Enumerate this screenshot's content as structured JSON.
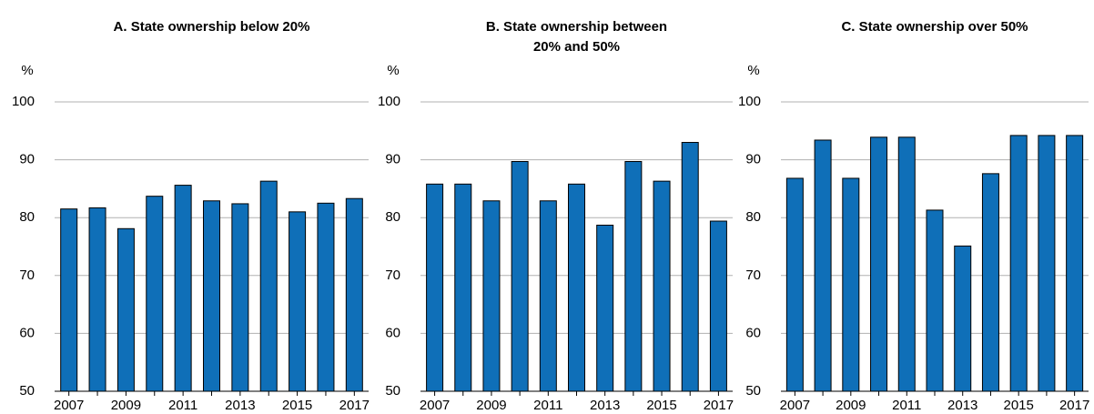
{
  "chart_data": [
    {
      "type": "bar",
      "title": [
        "A. State ownership below 20%"
      ],
      "ylabel": "%",
      "categories": [
        "2007",
        null,
        "2009",
        null,
        "2011",
        null,
        "2013",
        null,
        "2015",
        null,
        "2017"
      ],
      "values": [
        81.5,
        81.7,
        78.1,
        83.7,
        85.6,
        82.9,
        82.4,
        86.3,
        81.0,
        82.5,
        83.3
      ],
      "color": "#0f6fb8",
      "ylim": [
        50,
        100
      ],
      "yticks": [
        50,
        60,
        70,
        80,
        90,
        100
      ],
      "grid": true
    },
    {
      "type": "bar",
      "title": [
        "B. State ownership between",
        "20% and 50%"
      ],
      "ylabel": "%",
      "categories": [
        "2007",
        null,
        "2009",
        null,
        "2011",
        null,
        "2013",
        null,
        "2015",
        null,
        "2017"
      ],
      "values": [
        85.8,
        85.8,
        82.9,
        89.7,
        82.9,
        85.8,
        78.7,
        89.7,
        86.3,
        93.0,
        79.4
      ],
      "color": "#0f6fb8",
      "ylim": [
        50,
        100
      ],
      "yticks": [
        50,
        60,
        70,
        80,
        90,
        100
      ],
      "grid": true
    },
    {
      "type": "bar",
      "title": [
        "C. State ownership over 50%"
      ],
      "ylabel": "%",
      "categories": [
        "2007",
        null,
        "2009",
        null,
        "2011",
        null,
        "2013",
        null,
        "2015",
        null,
        "2017"
      ],
      "values": [
        86.8,
        93.4,
        86.8,
        93.9,
        93.9,
        81.3,
        75.1,
        87.6,
        94.2,
        94.2,
        94.2
      ],
      "color": "#0f6fb8",
      "ylim": [
        50,
        100
      ],
      "yticks": [
        50,
        60,
        70,
        80,
        90,
        100
      ],
      "grid": true
    }
  ]
}
